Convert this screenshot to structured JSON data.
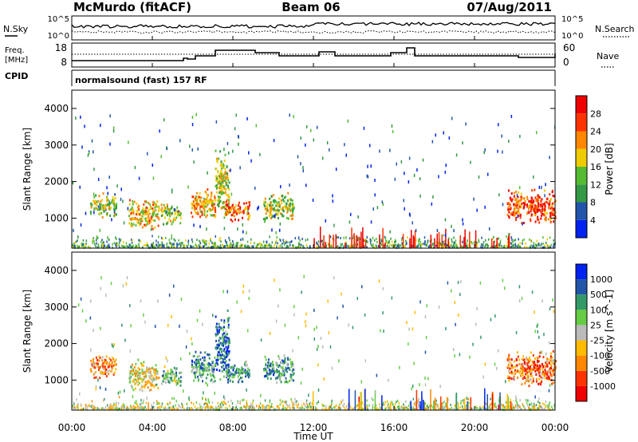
{
  "header": {
    "station": "McMurdo (fitACF)",
    "beam": "Beam 06",
    "date": "07/Aug/2011"
  },
  "noise_panel": {
    "left_label": "N.Sky",
    "right_label": "N.Search",
    "left_ticks": [
      "10^5",
      "10^0"
    ],
    "right_ticks": [
      "10^5",
      "10^0"
    ]
  },
  "freq_panel": {
    "left_label_1": "Freq.",
    "left_label_2": "[MHz]",
    "right_label": "Nave",
    "left_ticks": [
      "18",
      "8"
    ],
    "right_ticks": [
      "60",
      "0"
    ],
    "cpid_label": "CPID",
    "cpid_value": "normalsound (fast) 157 RF"
  },
  "x_axis": {
    "label": "Time UT",
    "ticks": [
      "00:00",
      "04:00",
      "08:00",
      "12:00",
      "16:00",
      "20:00",
      "00:00"
    ]
  },
  "colors": {
    "power": [
      "#0022ee",
      "#2255aa",
      "#339944",
      "#55bb33",
      "#eecc00",
      "#ff8800",
      "#ff3300",
      "#ee0000"
    ],
    "velocity": [
      "#ee0000",
      "#ff3300",
      "#ff8800",
      "#ffbb00",
      "#bbbbbb",
      "#66cc44",
      "#339966",
      "#2255aa",
      "#0022ee"
    ]
  },
  "chart_data": [
    {
      "type": "heatmap",
      "name": "power",
      "ylabel": "Slant Range [km]",
      "yticks": [
        "1000",
        "2000",
        "3000",
        "4000"
      ],
      "ylim": [
        180,
        4500
      ],
      "xlim_hours": [
        0,
        24
      ],
      "colorbar": {
        "label": "Power [dB]",
        "ticks": [
          "4",
          "8",
          "12",
          "16",
          "20",
          "24",
          "28"
        ],
        "range": [
          0,
          32
        ]
      },
      "echo_regions": [
        {
          "t0": 0.9,
          "t1": 2.2,
          "r0": 1000,
          "r1": 1700,
          "level": 0.45
        },
        {
          "t0": 2.8,
          "t1": 4.3,
          "r0": 650,
          "r1": 1550,
          "level": 0.6
        },
        {
          "t0": 4.4,
          "t1": 5.4,
          "r0": 800,
          "r1": 1400,
          "level": 0.45
        },
        {
          "t0": 5.9,
          "t1": 7.1,
          "r0": 850,
          "r1": 1800,
          "level": 0.65
        },
        {
          "t0": 7.1,
          "t1": 7.8,
          "r0": 900,
          "r1": 2900,
          "level": 0.5
        },
        {
          "t0": 7.6,
          "t1": 8.8,
          "r0": 900,
          "r1": 1500,
          "level": 0.75
        },
        {
          "t0": 9.5,
          "t1": 11.0,
          "r0": 850,
          "r1": 1700,
          "level": 0.5
        },
        {
          "t0": 21.6,
          "t1": 24.0,
          "r0": 800,
          "r1": 1800,
          "level": 0.8
        }
      ]
    },
    {
      "type": "heatmap",
      "name": "velocity",
      "ylabel": "Slant Range [km]",
      "yticks": [
        "1000",
        "2000",
        "3000",
        "4000"
      ],
      "ylim": [
        180,
        4500
      ],
      "xlim_hours": [
        0,
        24
      ],
      "colorbar": {
        "label": "Velocity [m s^-1]",
        "ticks": [
          "-1000",
          "-500",
          "-100",
          "-25",
          "25",
          "100",
          "500",
          "1000"
        ],
        "range": [
          -1500,
          1500
        ]
      },
      "echo_regions": [
        {
          "t0": 0.9,
          "t1": 2.2,
          "r0": 1000,
          "r1": 1700,
          "level": 0.3
        },
        {
          "t0": 2.8,
          "t1": 4.3,
          "r0": 650,
          "r1": 1550,
          "level": 0.45
        },
        {
          "t0": 4.4,
          "t1": 5.4,
          "r0": 800,
          "r1": 1400,
          "level": 0.6
        },
        {
          "t0": 5.9,
          "t1": 7.1,
          "r0": 850,
          "r1": 1800,
          "level": 0.7
        },
        {
          "t0": 7.1,
          "t1": 7.8,
          "r0": 900,
          "r1": 2900,
          "level": 0.8
        },
        {
          "t0": 7.6,
          "t1": 8.8,
          "r0": 900,
          "r1": 1500,
          "level": 0.7
        },
        {
          "t0": 9.5,
          "t1": 11.0,
          "r0": 850,
          "r1": 1700,
          "level": 0.7
        },
        {
          "t0": 21.6,
          "t1": 24.0,
          "r0": 800,
          "r1": 1800,
          "level": 0.25
        }
      ]
    }
  ]
}
